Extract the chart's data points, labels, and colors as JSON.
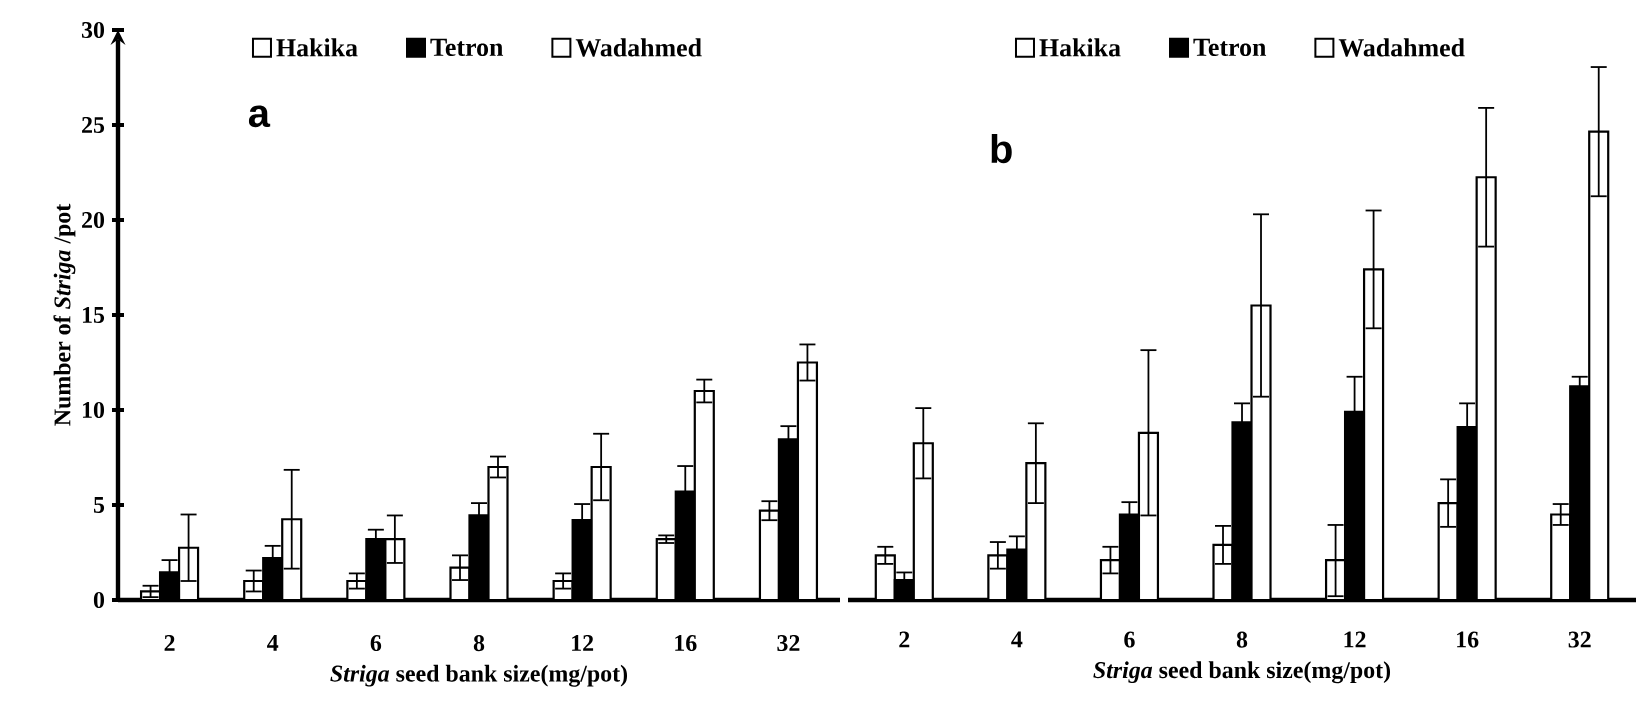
{
  "chart_data": [
    {
      "type": "bar",
      "categories": [
        "2",
        "4",
        "6",
        "8",
        "12",
        "16",
        "32"
      ],
      "xlabel": "*Striga* seed bank size(mg/pot)",
      "ylabel": "Number of *Striga* /pot",
      "ylim": [
        0,
        30
      ],
      "yticks": [
        0,
        5,
        10,
        15,
        20,
        25,
        30
      ],
      "legend": "top",
      "annotations": [
        "a"
      ],
      "series": [
        {
          "name": "Hakika",
          "color": "#ffffff",
          "values": [
            0.45,
            1.0,
            1.0,
            1.7,
            1.0,
            3.2,
            4.7
          ],
          "errors": [
            0.3,
            0.55,
            0.4,
            0.65,
            0.4,
            0.2,
            0.5
          ]
        },
        {
          "name": "Tetron",
          "color": "#000000",
          "values": [
            1.45,
            2.2,
            3.2,
            4.45,
            4.2,
            5.7,
            8.45
          ],
          "errors": [
            0.65,
            0.65,
            0.5,
            0.65,
            0.85,
            1.35,
            0.7
          ]
        },
        {
          "name": "Wadahmed",
          "color": "#ffffff",
          "values": [
            2.75,
            4.25,
            3.2,
            7.0,
            7.0,
            11.0,
            12.5
          ],
          "errors": [
            1.75,
            2.6,
            1.25,
            0.55,
            1.75,
            0.6,
            0.95
          ]
        }
      ]
    },
    {
      "type": "bar",
      "categories": [
        "2",
        "4",
        "6",
        "8",
        "12",
        "16",
        "32"
      ],
      "xlabel": "*Striga* seed bank size(mg/pot)",
      "ylim": [
        0,
        30
      ],
      "yticks": [
        0,
        5,
        10,
        15,
        20,
        25,
        30
      ],
      "tick_labels": "x",
      "legend": "top",
      "annotations": [
        "b"
      ],
      "series": [
        {
          "name": "Hakika",
          "color": "#ffffff",
          "values": [
            2.35,
            2.35,
            2.1,
            2.9,
            2.1,
            5.1,
            4.5
          ],
          "errors": [
            0.45,
            0.7,
            0.7,
            1.0,
            [
              0.2,
              3.95
            ],
            1.25,
            0.55
          ]
        },
        {
          "name": "Tetron",
          "color": "#000000",
          "values": [
            1.05,
            2.65,
            4.5,
            9.35,
            9.9,
            9.1,
            11.25
          ],
          "errors": [
            0.4,
            0.7,
            0.65,
            1.0,
            1.85,
            1.25,
            0.5
          ]
        },
        {
          "name": "Wadahmed",
          "color": "#ffffff",
          "values": [
            8.25,
            7.2,
            8.8,
            15.5,
            17.4,
            22.25,
            24.65
          ],
          "errors": [
            1.85,
            2.1,
            4.35,
            4.8,
            3.1,
            3.65,
            3.4
          ]
        }
      ]
    }
  ]
}
